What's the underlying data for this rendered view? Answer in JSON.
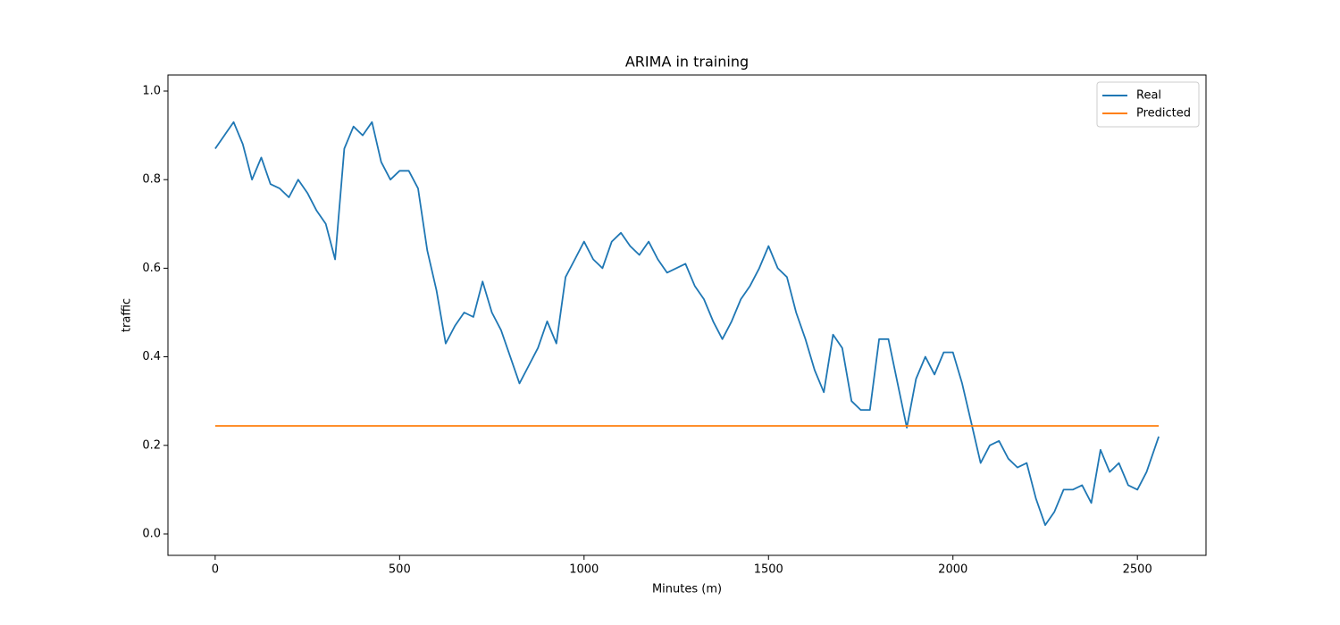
{
  "chart_data": {
    "type": "line",
    "title": "ARIMA in training",
    "x_label": "Minutes (m)",
    "y_label": "traffic",
    "x": [
      0,
      25,
      50,
      75,
      100,
      125,
      150,
      175,
      200,
      225,
      250,
      275,
      300,
      325,
      350,
      375,
      400,
      425,
      450,
      475,
      500,
      525,
      550,
      575,
      600,
      625,
      650,
      675,
      700,
      725,
      750,
      775,
      800,
      825,
      850,
      875,
      900,
      925,
      950,
      975,
      1000,
      1025,
      1050,
      1075,
      1100,
      1125,
      1150,
      1175,
      1200,
      1225,
      1250,
      1275,
      1300,
      1325,
      1350,
      1375,
      1400,
      1425,
      1450,
      1475,
      1500,
      1525,
      1550,
      1575,
      1600,
      1625,
      1650,
      1675,
      1700,
      1725,
      1750,
      1775,
      1800,
      1825,
      1850,
      1875,
      1900,
      1925,
      1950,
      1975,
      2000,
      2025,
      2050,
      2075,
      2100,
      2125,
      2150,
      2175,
      2200,
      2225,
      2250,
      2275,
      2300,
      2325,
      2350,
      2375,
      2400,
      2425,
      2450,
      2475,
      2500,
      2525,
      2558
    ],
    "series": [
      {
        "name": "Real",
        "color": "#1f77b4",
        "values": [
          0.87,
          0.9,
          0.93,
          0.88,
          0.8,
          0.85,
          0.79,
          0.78,
          0.76,
          0.8,
          0.77,
          0.73,
          0.7,
          0.62,
          0.87,
          0.92,
          0.9,
          0.93,
          0.84,
          0.8,
          0.82,
          0.82,
          0.78,
          0.64,
          0.55,
          0.43,
          0.47,
          0.5,
          0.49,
          0.57,
          0.5,
          0.46,
          0.4,
          0.34,
          0.38,
          0.42,
          0.48,
          0.43,
          0.58,
          0.62,
          0.66,
          0.62,
          0.6,
          0.66,
          0.68,
          0.65,
          0.63,
          0.66,
          0.62,
          0.59,
          0.6,
          0.61,
          0.56,
          0.53,
          0.48,
          0.44,
          0.48,
          0.53,
          0.56,
          0.6,
          0.65,
          0.6,
          0.58,
          0.5,
          0.44,
          0.37,
          0.32,
          0.45,
          0.42,
          0.3,
          0.28,
          0.28,
          0.44,
          0.44,
          0.34,
          0.24,
          0.35,
          0.4,
          0.36,
          0.41,
          0.41,
          0.34,
          0.25,
          0.16,
          0.2,
          0.21,
          0.17,
          0.15,
          0.16,
          0.08,
          0.02,
          0.05,
          0.1,
          0.1,
          0.11,
          0.07,
          0.19,
          0.14,
          0.16,
          0.11,
          0.1,
          0.14,
          0.22
        ]
      },
      {
        "name": "Predicted",
        "color": "#ff7f0e",
        "x": [
          0,
          2558
        ],
        "values": [
          0.244,
          0.244
        ]
      }
    ],
    "xlim": [
      -128,
      2686
    ],
    "ylim": [
      -0.0484,
      1.0363
    ],
    "xticks": [
      0,
      500,
      1000,
      1500,
      2000,
      2500
    ],
    "yticks": [
      {
        "value": 0,
        "label": "0.0"
      },
      0.2,
      0.4,
      0.6,
      0.8,
      {
        "value": 1,
        "label": "1.0"
      }
    ],
    "legend": "upper right"
  }
}
